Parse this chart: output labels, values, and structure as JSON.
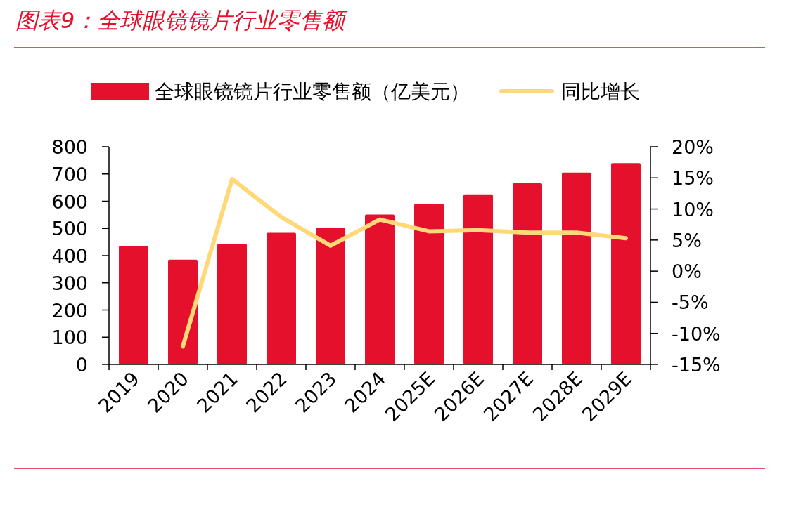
{
  "chart_data": {
    "type": "bar",
    "title": "图表9：全球眼镜镜片行业零售额",
    "categories": [
      "2019",
      "2020",
      "2021",
      "2022",
      "2023",
      "2024",
      "2025E",
      "2026E",
      "2027E",
      "2028E",
      "2029E"
    ],
    "series": [
      {
        "name": "全球眼镜镜片行业零售额（亿美元）",
        "color": "#e5112c",
        "values": [
          436,
          385,
          443,
          484,
          503,
          551,
          591,
          625,
          666,
          705,
          740
        ]
      },
      {
        "name": "同比增长",
        "type": "line",
        "axis": "y2",
        "color": "#ffd978",
        "values": [
          null,
          -12.1,
          14.8,
          8.7,
          4.1,
          8.3,
          6.4,
          6.6,
          6.2,
          6.2,
          5.3
        ]
      }
    ],
    "ylim": [
      0,
      800
    ],
    "yticks": [
      0,
      100,
      200,
      300,
      400,
      500,
      600,
      700,
      800
    ],
    "y2lim": [
      -15,
      20
    ],
    "y2ticks": [
      {
        "value": -15,
        "label": "-15%"
      },
      {
        "value": -10,
        "label": "-10%"
      },
      {
        "value": -5,
        "label": "-5%"
      },
      {
        "value": 0,
        "label": "0%"
      },
      {
        "value": 5,
        "label": "5%"
      },
      {
        "value": 10,
        "label": "10%"
      },
      {
        "value": 15,
        "label": "15%"
      },
      {
        "value": 20,
        "label": "20%"
      }
    ],
    "legend": "top",
    "grid": false
  }
}
